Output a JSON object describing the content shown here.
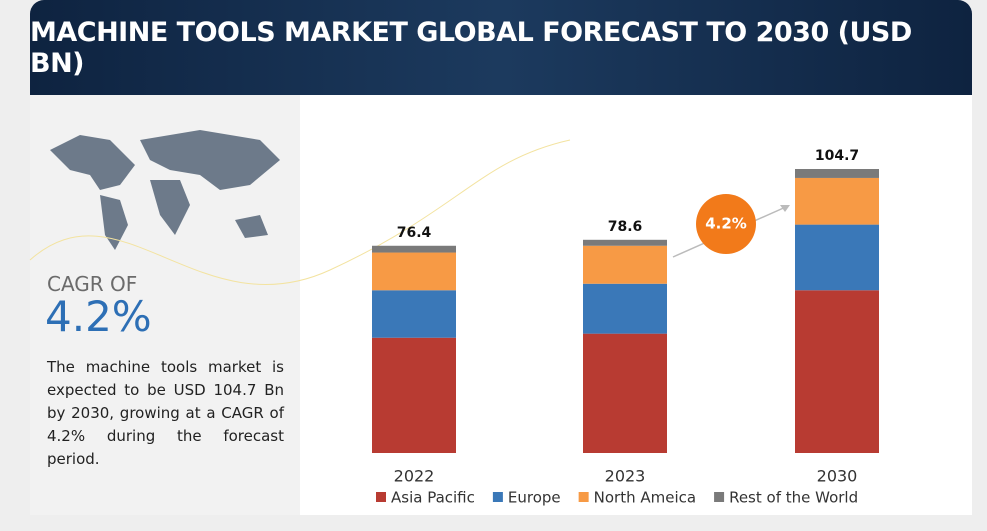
{
  "title": "MACHINE TOOLS MARKET GLOBAL FORECAST TO 2030 (USD BN)",
  "cagr_label": "CAGR OF",
  "cagr_value": "4.2%",
  "description": "The machine tools market is expected to be USD 104.7 Bn by 2030, growing at a CAGR of 4.2% during the forecast period.",
  "chart_data": {
    "type": "stacked_bar",
    "categories": [
      "2022",
      "2023",
      "2030"
    ],
    "series": [
      {
        "name": "Asia Pacific",
        "color": "#b83b32",
        "values": [
          42.5,
          44,
          60
        ]
      },
      {
        "name": "Europe",
        "color": "#3a78b8",
        "values": [
          17.5,
          18.4,
          24.2
        ]
      },
      {
        "name": "North Ameica",
        "color": "#f79a45",
        "values": [
          13.9,
          14,
          17.2
        ]
      },
      {
        "name": "Rest of the World",
        "color": "#7a7a7a",
        "values": [
          2.5,
          2.2,
          3.3
        ]
      }
    ],
    "totals": [
      76.4,
      78.6,
      104.7
    ],
    "annotation": "4.2%",
    "legend": "bottom"
  }
}
